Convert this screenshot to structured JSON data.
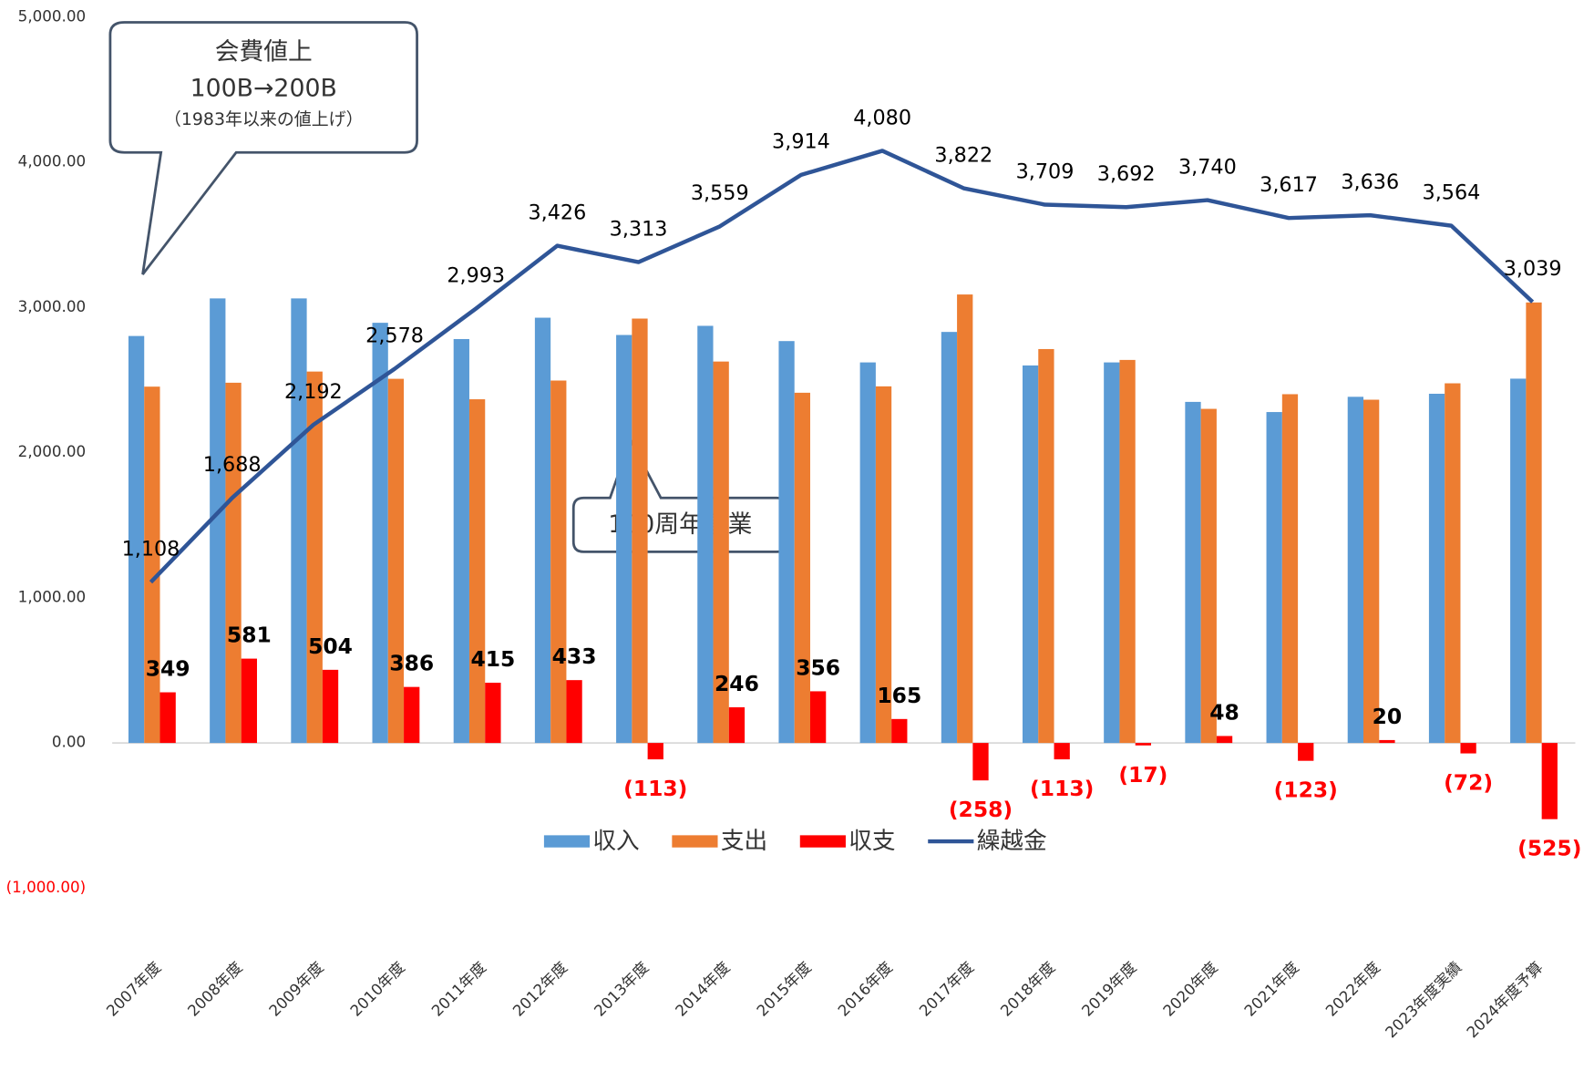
{
  "chart_data": {
    "type": "bar",
    "categories": [
      "2007年度",
      "2008年度",
      "2009年度",
      "2010年度",
      "2011年度",
      "2012年度",
      "2013年度",
      "2014年度",
      "2015年度",
      "2016年度",
      "2017年度",
      "2018年度",
      "2019年度",
      "2020年度",
      "2021年度",
      "2022年度",
      "2023年度実績",
      "2024年度予算"
    ],
    "series": [
      {
        "name": "収入",
        "color": "#5b9bd5",
        "values": [
          2804,
          3063,
          3063,
          2895,
          2783,
          2930,
          2811,
          2874,
          2769,
          2622,
          2832,
          2601,
          2622,
          2350,
          2280,
          2385,
          2406,
          2510
        ]
      },
      {
        "name": "支出",
        "color": "#ed7d31",
        "values": [
          2455,
          2482,
          2559,
          2509,
          2368,
          2497,
          2924,
          2628,
          2413,
          2457,
          3090,
          2714,
          2639,
          2302,
          2403,
          2365,
          2478,
          3035
        ]
      },
      {
        "name": "収支",
        "color": "#ff0000",
        "values": [
          349,
          581,
          504,
          386,
          415,
          433,
          -113,
          246,
          356,
          165,
          -258,
          -113,
          -17,
          48,
          -123,
          20,
          -72,
          -525
        ],
        "value_labels": [
          "349",
          "581",
          "504",
          "386",
          "415",
          "433",
          "(113)",
          "246",
          "356",
          "165",
          "(258)",
          "(113)",
          "(17)",
          "48",
          "(123)",
          "20",
          "(72)",
          "(525)"
        ]
      },
      {
        "name": "繰越金",
        "color": "#2f5597",
        "type": "line",
        "values": [
          1108,
          1688,
          2192,
          2578,
          2993,
          3426,
          3313,
          3559,
          3914,
          4080,
          3822,
          3709,
          3692,
          3740,
          3617,
          3636,
          3564,
          3039
        ],
        "value_labels": [
          "1,108",
          "1,688",
          "2,192",
          "2,578",
          "2,993",
          "3,426",
          "3,313",
          "3,559",
          "3,914",
          "4,080",
          "3,822",
          "3,709",
          "3,692",
          "3,740",
          "3,617",
          "3,636",
          "3,564",
          "3,039"
        ]
      }
    ],
    "ylim": [
      -1000,
      5000
    ],
    "yticks": [
      {
        "value": -1000,
        "label": "(1,000.00)"
      },
      {
        "value": 0,
        "label": "0.00"
      },
      {
        "value": 1000,
        "label": "1,000.00"
      },
      {
        "value": 2000,
        "label": "2,000.00"
      },
      {
        "value": 3000,
        "label": "3,000.00"
      },
      {
        "value": 4000,
        "label": "4,000.00"
      },
      {
        "value": 5000,
        "label": "5,000.00"
      }
    ],
    "annotations": [
      "会費値上",
      "100B→200B",
      "（1983年以来の値上げ）",
      "100周年事業"
    ],
    "legend": "bottom"
  }
}
